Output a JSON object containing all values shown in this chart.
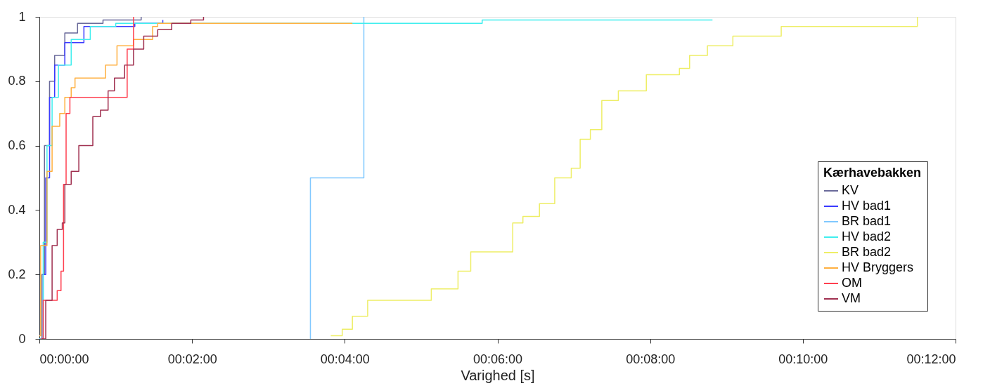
{
  "chart_data": {
    "type": "step",
    "xlabel": "Varighed [s]",
    "legend_title": "Kærhavebakken",
    "legend": "bottom right",
    "grid": false,
    "marker": "none",
    "line_style": "solid",
    "xlim": [
      0,
      720
    ],
    "ylim": [
      0,
      1
    ],
    "xticks": [
      {
        "value": 0,
        "label": "00:00:00"
      },
      {
        "value": 120,
        "label": "00:02:00"
      },
      {
        "value": 240,
        "label": "00:04:00"
      },
      {
        "value": 360,
        "label": "00:06:00"
      },
      {
        "value": 480,
        "label": "00:08:00"
      },
      {
        "value": 600,
        "label": "00:10:00"
      },
      {
        "value": 720,
        "label": "00:12:00"
      }
    ],
    "yticks": [
      0,
      0.2,
      0.4,
      0.6,
      0.8,
      1
    ],
    "series": [
      {
        "name": "KV",
        "color": "#6a6a9a",
        "x": [
          0,
          2,
          4,
          8,
          12,
          20,
          30,
          50,
          80
        ],
        "values": [
          0,
          0.2,
          0.6,
          0.8,
          0.88,
          0.95,
          0.98,
          0.99,
          1
        ]
      },
      {
        "name": "HV bad1",
        "color": "#3a3aff",
        "x": [
          0,
          3,
          5,
          8,
          12,
          20,
          35,
          75,
          97
        ],
        "values": [
          0,
          0.2,
          0.5,
          0.75,
          0.85,
          0.92,
          0.97,
          0.98,
          0.99
        ]
      },
      {
        "name": "BR bad1",
        "color": "#80c8ff",
        "x": [
          213,
          213,
          255,
          255
        ],
        "values": [
          0,
          0.5,
          0.5,
          1
        ]
      },
      {
        "name": "HV bad2",
        "color": "#40eeee",
        "x": [
          0,
          3,
          6,
          10,
          15,
          25,
          40,
          60,
          348,
          529
        ],
        "values": [
          0,
          0.3,
          0.6,
          0.75,
          0.85,
          0.93,
          0.97,
          0.98,
          0.99,
          0.99
        ]
      },
      {
        "name": "BR bad2",
        "color": "#eeee66",
        "x": [
          229,
          238,
          246,
          258,
          308,
          329,
          339,
          365,
          372,
          380,
          393,
          405,
          418,
          425,
          433,
          442,
          455,
          477,
          503,
          511,
          525,
          545,
          583,
          687,
          690
        ],
        "values": [
          0.01,
          0.03,
          0.07,
          0.12,
          0.155,
          0.21,
          0.27,
          0.27,
          0.36,
          0.38,
          0.42,
          0.5,
          0.53,
          0.62,
          0.65,
          0.74,
          0.77,
          0.82,
          0.84,
          0.88,
          0.91,
          0.94,
          0.97,
          0.97,
          1
        ]
      },
      {
        "name": "HV Bryggers",
        "color": "#ffb040",
        "x": [
          0,
          1,
          6,
          10,
          16,
          20,
          25,
          28,
          52,
          61,
          74,
          86,
          89,
          93,
          246
        ],
        "values": [
          0.01,
          0.29,
          0.52,
          0.66,
          0.7,
          0.75,
          0.78,
          0.81,
          0.85,
          0.91,
          0.93,
          0.93,
          0.97,
          0.98,
          0.98
        ]
      },
      {
        "name": "OM",
        "color": "#ff4050",
        "x": [
          1,
          3,
          10,
          14,
          17,
          19,
          21,
          24,
          65,
          69,
          74,
          74
        ],
        "values": [
          0,
          0.12,
          0.12,
          0.15,
          0.21,
          0.48,
          0.7,
          0.75,
          0.75,
          0.9,
          0.93,
          1
        ]
      },
      {
        "name": "VM",
        "color": "#a03050",
        "x": [
          2,
          5,
          10,
          14,
          18,
          20,
          25,
          31,
          42,
          48,
          54,
          59,
          67,
          74,
          82,
          93,
          104,
          119,
          129
        ],
        "values": [
          0,
          0.12,
          0.29,
          0.34,
          0.36,
          0.48,
          0.52,
          0.6,
          0.69,
          0.71,
          0.77,
          0.81,
          0.85,
          0.9,
          0.94,
          0.96,
          0.98,
          0.99,
          1
        ]
      }
    ]
  }
}
